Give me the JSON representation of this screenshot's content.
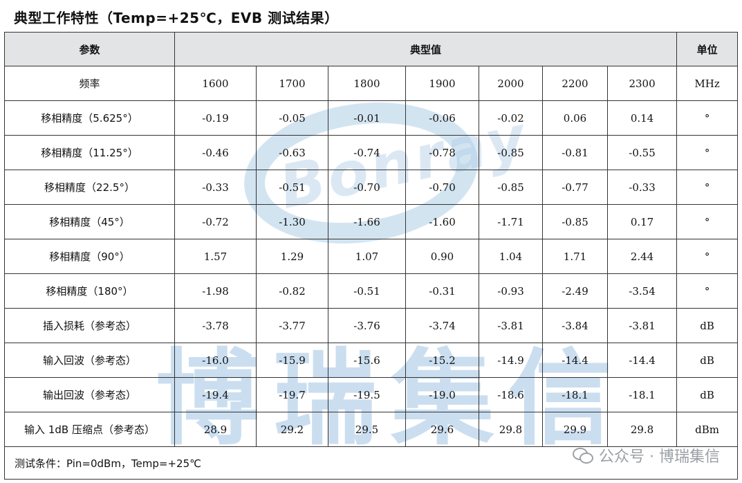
{
  "title": "典型工作特性（Temp=+25℃，EVB 测试结果）",
  "header": {
    "param": "参数",
    "typical": "典型值",
    "unit": "单位"
  },
  "rows": [
    {
      "label": "频率",
      "values": [
        "1600",
        "1700",
        "1800",
        "1900",
        "2000",
        "2200",
        "2300"
      ],
      "unit": "MHz"
    },
    {
      "label": "移相精度（5.625°）",
      "values": [
        "-0.19",
        "-0.05",
        "-0.01",
        "-0.06",
        "-0.02",
        "0.06",
        "0.14"
      ],
      "unit": "°"
    },
    {
      "label": "移相精度（11.25°）",
      "values": [
        "-0.46",
        "-0.63",
        "-0.74",
        "-0.78",
        "-0.85",
        "-0.81",
        "-0.55"
      ],
      "unit": "°"
    },
    {
      "label": "移相精度（22.5°）",
      "values": [
        "-0.33",
        "-0.51",
        "-0.70",
        "-0.70",
        "-0.85",
        "-0.77",
        "-0.33"
      ],
      "unit": "°"
    },
    {
      "label": "移相精度（45°）",
      "values": [
        "-0.72",
        "-1.30",
        "-1.66",
        "-1.60",
        "-1.71",
        "-0.85",
        "0.17"
      ],
      "unit": "°"
    },
    {
      "label": "移相精度（90°）",
      "values": [
        "1.57",
        "1.29",
        "1.07",
        "0.90",
        "1.04",
        "1.71",
        "2.44"
      ],
      "unit": "°"
    },
    {
      "label": "移相精度（180°）",
      "values": [
        "-1.98",
        "-0.82",
        "-0.51",
        "-0.31",
        "-0.93",
        "-2.49",
        "-3.54"
      ],
      "unit": "°"
    },
    {
      "label": "插入损耗（参考态）",
      "values": [
        "-3.78",
        "-3.77",
        "-3.76",
        "-3.74",
        "-3.81",
        "-3.84",
        "-3.81"
      ],
      "unit": "dB"
    },
    {
      "label": "输入回波（参考态）",
      "values": [
        "-16.0",
        "-15.9",
        "-15.6",
        "-15.2",
        "-14.9",
        "-14.4",
        "-14.4"
      ],
      "unit": "dB"
    },
    {
      "label": "输出回波（参考态）",
      "values": [
        "-19.4",
        "-19.7",
        "-19.5",
        "-19.0",
        "-18.6",
        "-18.1",
        "-18.1"
      ],
      "unit": "dB"
    },
    {
      "label": "输入 1dB 压缩点（参考态）",
      "values": [
        "28.9",
        "29.2",
        "29.5",
        "29.6",
        "29.8",
        "29.9",
        "29.8"
      ],
      "unit": "dBm"
    }
  ],
  "footer": "测试条件：Pin=0dBm，Temp=+25℃",
  "watermarks": {
    "logo_text": "Bonray",
    "company": "博瑞集信",
    "source": "公众号 · 博瑞集信",
    "source_icon": "wechat-icon"
  }
}
